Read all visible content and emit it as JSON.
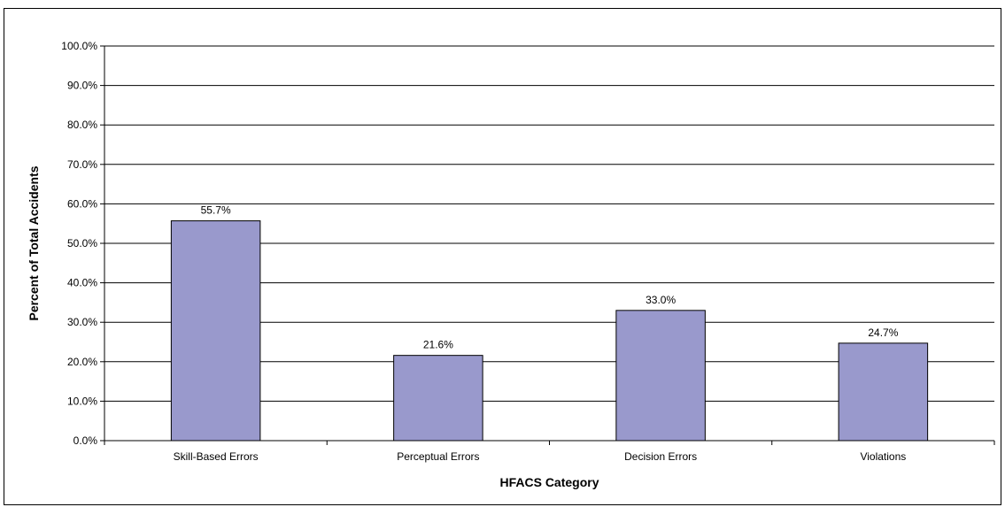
{
  "chart_data": {
    "type": "bar",
    "title": "",
    "xlabel": "HFACS Category",
    "ylabel": "Percent of Total Accidents",
    "categories": [
      "Skill-Based Errors",
      "Perceptual Errors",
      "Decision Errors",
      "Violations"
    ],
    "values": [
      55.7,
      21.6,
      33.0,
      24.7
    ],
    "data_labels": [
      "55.7%",
      "21.6%",
      "33.0%",
      "24.7%"
    ],
    "ylim": [
      0,
      100
    ],
    "y_ticks": [
      0,
      10,
      20,
      30,
      40,
      50,
      60,
      70,
      80,
      90,
      100
    ],
    "y_tick_labels": [
      "0.0%",
      "10.0%",
      "20.0%",
      "30.0%",
      "40.0%",
      "50.0%",
      "60.0%",
      "70.0%",
      "80.0%",
      "90.0%",
      "100.0%"
    ],
    "grid": true,
    "legend": "none",
    "bar_color": "#9999cc",
    "bar_edge_color": "#000000"
  }
}
